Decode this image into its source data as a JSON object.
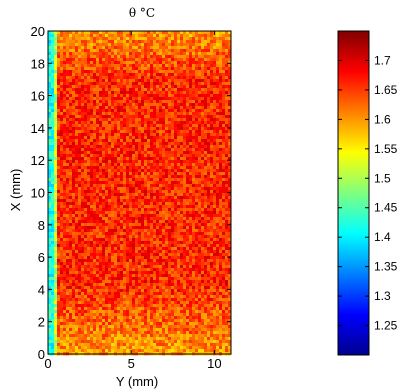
{
  "chart_data": {
    "type": "heatmap",
    "title": "θ °C",
    "xlabel": "Y (mm)",
    "ylabel": "X (mm)",
    "x_range": [
      0,
      11
    ],
    "y_range": [
      0,
      20
    ],
    "x_ticks": [
      0,
      5,
      10
    ],
    "x_tick_labels": [
      "0",
      "5",
      "10"
    ],
    "y_ticks": [
      0,
      2,
      4,
      6,
      8,
      10,
      12,
      14,
      16,
      18,
      20
    ],
    "y_tick_labels": [
      "0",
      "2",
      "4",
      "6",
      "8",
      "10",
      "12",
      "14",
      "16",
      "18",
      "20"
    ],
    "colorbar": {
      "range": [
        1.2,
        1.75
      ],
      "ticks": [
        1.25,
        1.3,
        1.35,
        1.4,
        1.45,
        1.5,
        1.55,
        1.6,
        1.65,
        1.7
      ],
      "tick_labels": [
        "1.25",
        "1.3",
        "1.35",
        "1.4",
        "1.45",
        "1.5",
        "1.55",
        "1.6",
        "1.65",
        "1.7"
      ],
      "colormap": "jet"
    },
    "field_summary": {
      "bulk_value": 1.66,
      "low_region_bottom": 1.6,
      "low_edge_value": 1.45,
      "left_edge_min": 1.38
    },
    "grid": false
  }
}
